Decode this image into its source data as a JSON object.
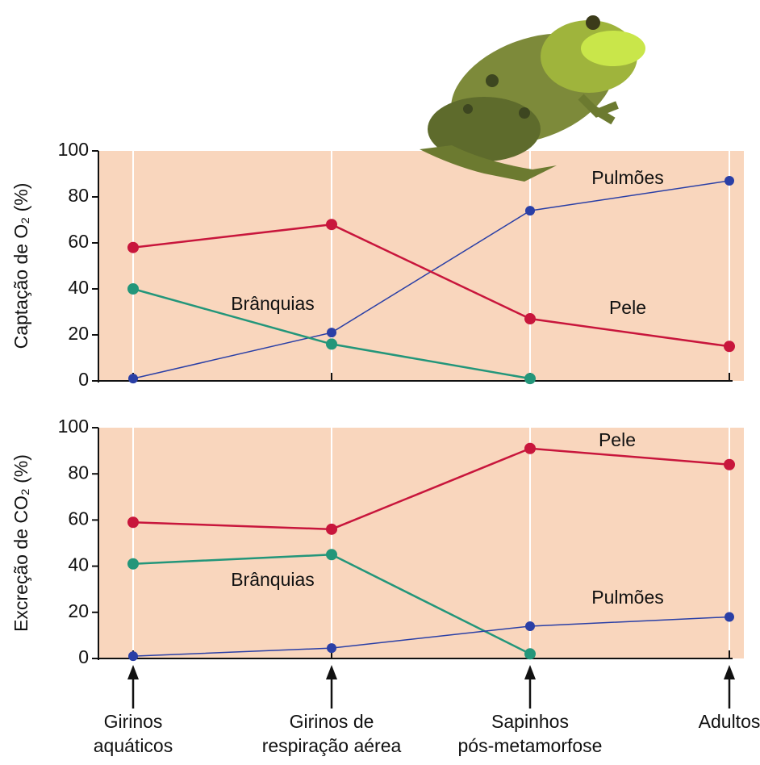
{
  "chart_data": [
    {
      "type": "line",
      "ylabel": "Captação de O₂ (%)",
      "ylim": [
        0,
        100
      ],
      "yticks": [
        0,
        20,
        40,
        60,
        80,
        100
      ],
      "series": [
        {
          "name": "Pulmões",
          "color": "#2a3fa6",
          "values": [
            1,
            21,
            74,
            87
          ]
        },
        {
          "name": "Pele",
          "color": "#c8163c",
          "values": [
            58,
            68,
            27,
            15
          ]
        },
        {
          "name": "Brânquias",
          "color": "#23967a",
          "values": [
            40,
            16,
            1,
            null
          ]
        }
      ]
    },
    {
      "type": "line",
      "ylabel": "Excreção de CO₂ (%)",
      "ylim": [
        0,
        100
      ],
      "yticks": [
        0,
        20,
        40,
        60,
        80,
        100
      ],
      "categories": [
        [
          "Girinos",
          "aquáticos"
        ],
        [
          "Girinos de",
          "respiração aérea"
        ],
        [
          "Sapinhos",
          "pós-metamorfose"
        ],
        [
          "Adultos"
        ]
      ],
      "series": [
        {
          "name": "Pele",
          "color": "#c8163c",
          "values": [
            59,
            56,
            91,
            84
          ]
        },
        {
          "name": "Brânquias",
          "color": "#23967a",
          "values": [
            41,
            45,
            2,
            null
          ]
        },
        {
          "name": "Pulmões",
          "color": "#2a3fa6",
          "values": [
            1,
            4.5,
            14,
            18
          ]
        }
      ]
    }
  ]
}
